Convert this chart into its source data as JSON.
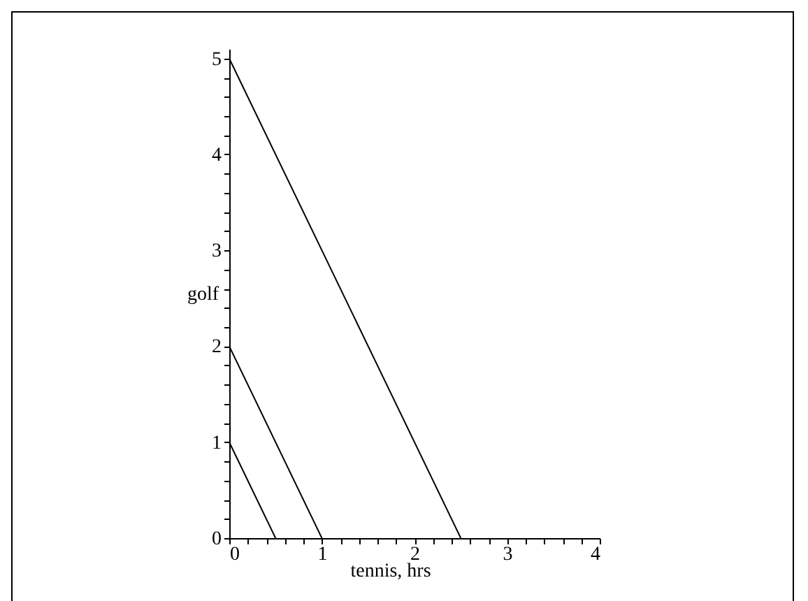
{
  "chart_data": {
    "type": "line",
    "xlabel": "tennis, hrs",
    "ylabel": "golf",
    "series": [
      {
        "color": "#000000",
        "x": [
          0,
          0.5
        ],
        "values": [
          1,
          0
        ]
      },
      {
        "color": "#000000",
        "x": [
          0,
          1
        ],
        "values": [
          2,
          0
        ]
      },
      {
        "color": "#000000",
        "x": [
          0,
          2.5
        ],
        "values": [
          5,
          0
        ]
      }
    ],
    "xlim": [
      0,
      4
    ],
    "ylim": [
      0,
      5.1
    ],
    "xticks": [
      0,
      {
        "value": 0.2,
        "label": null
      },
      {
        "value": 0.4,
        "label": null
      },
      {
        "value": 0.6,
        "label": null
      },
      {
        "value": 0.8,
        "label": null
      },
      1,
      {
        "value": 1.2,
        "label": null
      },
      {
        "value": 1.4,
        "label": null
      },
      {
        "value": 1.6,
        "label": null
      },
      {
        "value": 1.8,
        "label": null
      },
      2,
      {
        "value": 2.2,
        "label": null
      },
      {
        "value": 2.4,
        "label": null
      },
      {
        "value": 2.6,
        "label": null
      },
      {
        "value": 2.8,
        "label": null
      },
      3,
      {
        "value": 3.2,
        "label": null
      },
      {
        "value": 3.4,
        "label": null
      },
      {
        "value": 3.6,
        "label": null
      },
      {
        "value": 3.8,
        "label": null
      },
      4
    ],
    "yticks": [
      0,
      {
        "value": 0.2,
        "label": null
      },
      {
        "value": 0.4,
        "label": null
      },
      {
        "value": 0.6,
        "label": null
      },
      {
        "value": 0.8,
        "label": null
      },
      1,
      {
        "value": 1.2,
        "label": null
      },
      {
        "value": 1.4,
        "label": null
      },
      {
        "value": 1.6,
        "label": null
      },
      {
        "value": 1.8,
        "label": null
      },
      2,
      {
        "value": 2.2,
        "label": null
      },
      {
        "value": 2.4,
        "label": null
      },
      {
        "value": 2.6,
        "label": null
      },
      {
        "value": 2.8,
        "label": null
      },
      3,
      {
        "value": 3.2,
        "label": null
      },
      {
        "value": 3.4,
        "label": null
      },
      {
        "value": 3.6,
        "label": null
      },
      {
        "value": 3.8,
        "label": null
      },
      4,
      {
        "value": 4.2,
        "label": null
      },
      {
        "value": 4.4,
        "label": null
      },
      {
        "value": 4.6,
        "label": null
      },
      {
        "value": 4.8,
        "label": null
      },
      5
    ],
    "grid": false,
    "legend": false,
    "marker": "none",
    "line_style": "solid"
  }
}
